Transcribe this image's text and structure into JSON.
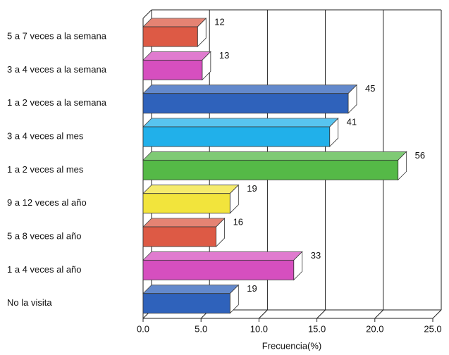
{
  "chart_data": {
    "type": "bar3d",
    "orientation": "horizontal",
    "x_label": "Frecuencia(%)",
    "categories": [
      "5 a 7 veces a la semana",
      "3 a 4 veces a la semana",
      "1 a 2 veces a la semana",
      "3 a 4 veces al mes",
      "1 a 2 veces al mes",
      "9 a 12 veces al año",
      "5 a 8 veces al año",
      "1 a 4 veces al año",
      "No la visita"
    ],
    "values": [
      4.7,
      5.1,
      17.7,
      16.1,
      22.0,
      7.5,
      6.3,
      13.0,
      7.5
    ],
    "value_labels": [
      "12",
      "13",
      "45",
      "41",
      "56",
      "19",
      "16",
      "33",
      "19"
    ],
    "colors": [
      "#dd5a45",
      "#d64fbf",
      "#2f62bb",
      "#21b0ea",
      "#55b947",
      "#f2e43c",
      "#dd5a45",
      "#d64fbf",
      "#2f62bb"
    ],
    "xlim": [
      0,
      25
    ],
    "xticks": [
      {
        "value": 0,
        "label": "0.0"
      },
      {
        "value": 5,
        "label": "5.0"
      },
      {
        "value": 10,
        "label": "10.0"
      },
      {
        "value": 15,
        "label": "15.0"
      },
      {
        "value": 20,
        "label": "20.0"
      },
      {
        "value": 25,
        "label": "25.0"
      }
    ],
    "grid": true
  }
}
